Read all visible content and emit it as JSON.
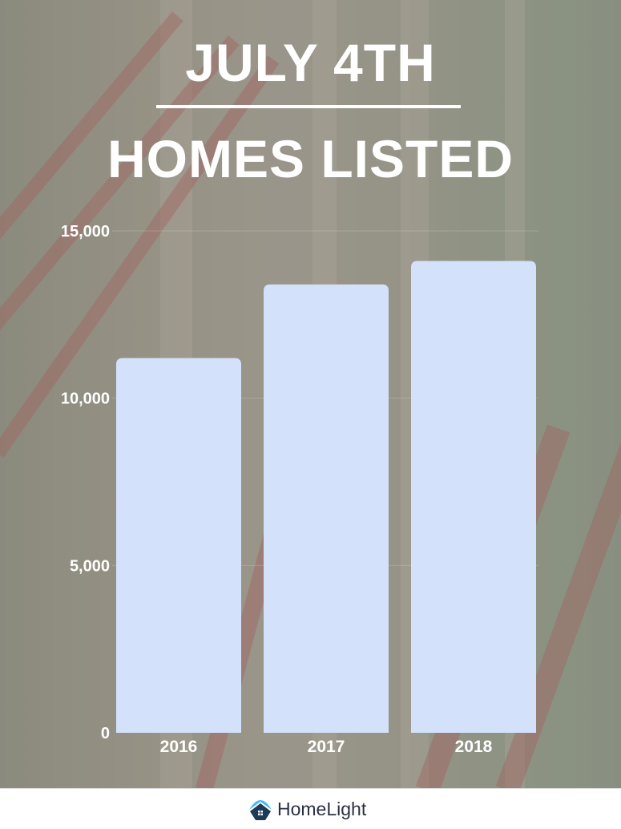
{
  "title_line1": "JULY 4TH",
  "title_line2": "HOMES LISTED",
  "colors": {
    "bar": "#d3e1fa",
    "text": "#ffffff",
    "logo_blue": "#46b6ff",
    "logo_navy": "#1f3a55"
  },
  "footer": {
    "brand": "HomeLight"
  },
  "chart_data": {
    "type": "bar",
    "title": "JULY 4TH HOMES LISTED",
    "categories": [
      "2016",
      "2017",
      "2018"
    ],
    "values": [
      11200,
      13400,
      14100
    ],
    "ylim": [
      0,
      15000
    ],
    "yticks": [
      0,
      5000,
      10000,
      15000
    ],
    "ytick_labels": [
      "0",
      "5,000",
      "10,000",
      "15,000"
    ],
    "grid": true,
    "xlabel": "",
    "ylabel": ""
  }
}
